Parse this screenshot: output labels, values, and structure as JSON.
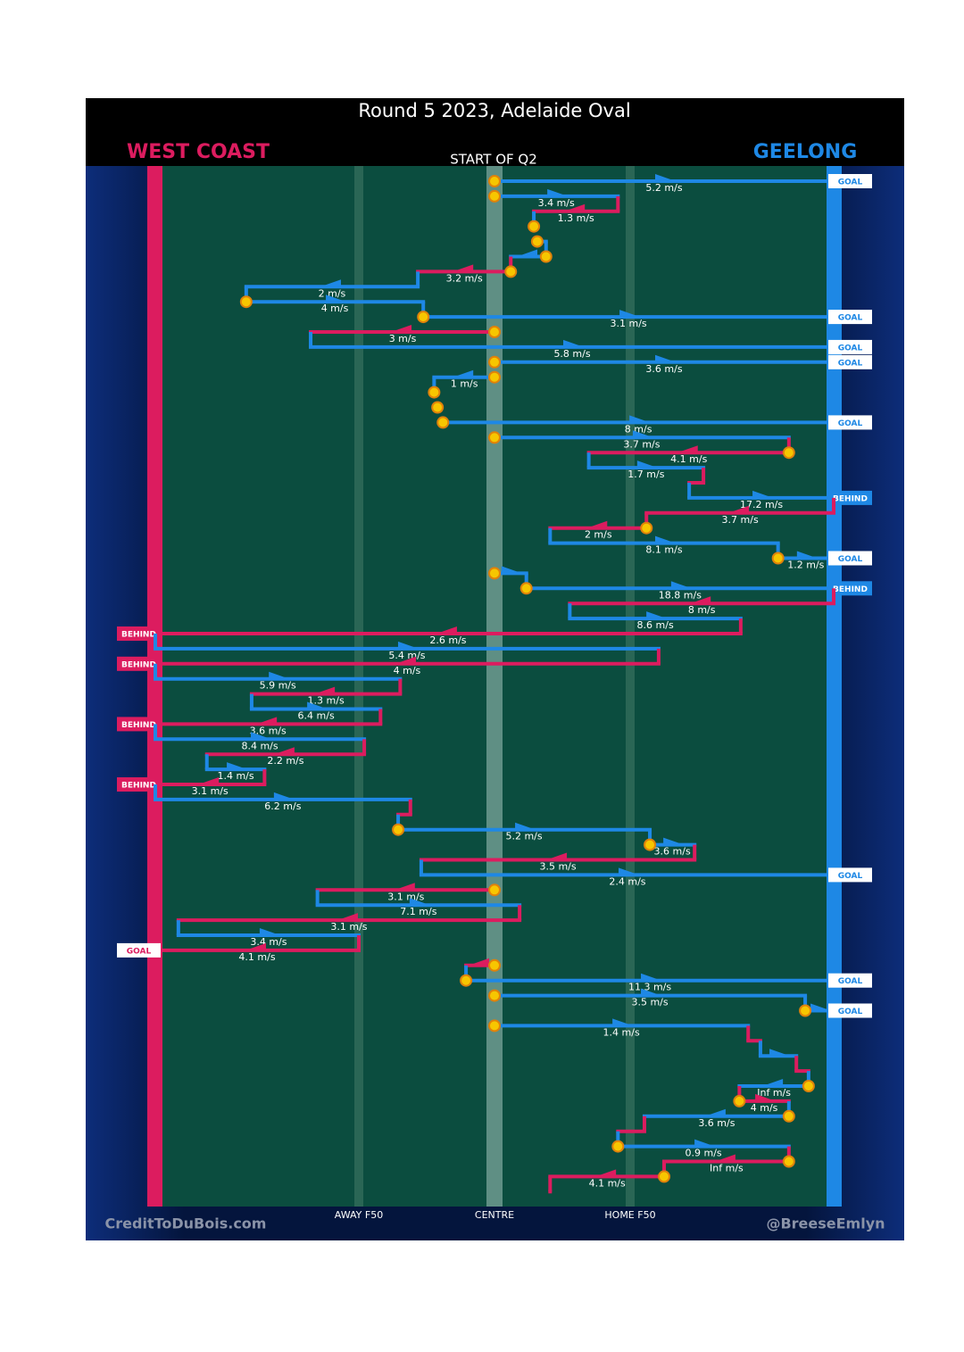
{
  "chart_data": {
    "type": "possession-chain",
    "title": "Round 5 2023, Adelaide Oval",
    "subtitle": "START OF Q2",
    "teams": [
      {
        "name": "WEST COAST",
        "color": "#dc1c5f"
      },
      {
        "name": "GEELONG",
        "color": "#1e88e5"
      }
    ],
    "credits": [
      "CreditToDuBois.com",
      "@BreeseEmlyn"
    ],
    "xlim": [
      0,
      100
    ],
    "xticks": [
      {
        "value": 30,
        "label": "AWAY F50"
      },
      {
        "value": 50,
        "label": "CENTRE"
      },
      {
        "value": 70,
        "label": "HOME F50"
      }
    ],
    "rows": [
      {
        "team": 1,
        "from": 50,
        "to": 100,
        "speed": "5.2 m/s",
        "result": "GOAL",
        "stoppage": true
      },
      {
        "team": 1,
        "from": 50,
        "to": 68.2,
        "speed": "3.4 m/s",
        "stoppage": true
      },
      {
        "team": 0,
        "from": 68.2,
        "to": 55.8,
        "speed": "1.3 m/s"
      },
      {
        "team": 1,
        "from": 55.8,
        "to": 55.8,
        "stoppage": true
      },
      {
        "team": 1,
        "from": 56.3,
        "to": 57.6,
        "stoppage": true
      },
      {
        "team": 1,
        "from": 57.6,
        "to": 52.4,
        "stoppage": true
      },
      {
        "team": 0,
        "from": 52.4,
        "to": 38.7,
        "speed": "3.2 m/s",
        "stoppage": true
      },
      {
        "team": 1,
        "from": 38.7,
        "to": 13.4,
        "speed": "2 m/s"
      },
      {
        "team": 1,
        "from": 13.4,
        "to": 39.5,
        "speed": "4 m/s",
        "stoppage": true
      },
      {
        "team": 1,
        "from": 39.5,
        "to": 100,
        "speed": "3.1 m/s",
        "result": "GOAL",
        "stoppage": true
      },
      {
        "team": 0,
        "from": 50,
        "to": 22.9,
        "speed": "3 m/s",
        "stoppage": true
      },
      {
        "team": 1,
        "from": 22.9,
        "to": 100,
        "speed": "5.8 m/s",
        "result": "GOAL"
      },
      {
        "team": 1,
        "from": 50,
        "to": 100,
        "speed": "3.6 m/s",
        "result": "GOAL",
        "stoppage": true
      },
      {
        "team": 1,
        "from": 50,
        "to": 41.1,
        "speed": "1 m/s",
        "stoppage": true
      },
      {
        "team": 1,
        "from": 41.1,
        "to": 41.1,
        "stoppage": true
      },
      {
        "team": 1,
        "from": 41.6,
        "to": 41.6,
        "stoppage": true
      },
      {
        "team": 1,
        "from": 42.4,
        "to": 100,
        "speed": "8 m/s",
        "result": "GOAL",
        "stoppage": true
      },
      {
        "team": 1,
        "from": 50,
        "to": 93.4,
        "speed": "3.7 m/s",
        "stoppage": true
      },
      {
        "team": 0,
        "from": 93.4,
        "to": 63.9,
        "speed": "4.1 m/s",
        "stoppage": true
      },
      {
        "team": 1,
        "from": 63.9,
        "to": 80.8,
        "speed": "1.7 m/s"
      },
      {
        "team": 0,
        "from": 80.8,
        "to": 78.7
      },
      {
        "team": 1,
        "from": 78.7,
        "to": 100,
        "speed": "17.2 m/s",
        "result": "BEHIND"
      },
      {
        "team": 0,
        "from": 100,
        "to": 72.4,
        "speed": "3.7 m/s"
      },
      {
        "team": 0,
        "from": 72.4,
        "to": 58.2,
        "speed": "2 m/s",
        "stoppage": true
      },
      {
        "team": 1,
        "from": 58.2,
        "to": 91.8,
        "speed": "8.1 m/s"
      },
      {
        "team": 1,
        "from": 91.8,
        "to": 100,
        "speed": "1.2 m/s",
        "result": "GOAL",
        "stoppage": true
      },
      {
        "team": 1,
        "from": 50,
        "to": 54.7,
        "stoppage": true
      },
      {
        "team": 1,
        "from": 54.7,
        "to": 100,
        "speed": "18.8 m/s",
        "result": "BEHIND",
        "stoppage": true
      },
      {
        "team": 0,
        "from": 100,
        "to": 61.1,
        "speed": "8 m/s"
      },
      {
        "team": 1,
        "from": 61.1,
        "to": 86.3,
        "speed": "8.6 m/s"
      },
      {
        "team": 0,
        "from": 86.3,
        "to": 0,
        "speed": "2.6 m/s",
        "result": "BEHIND"
      },
      {
        "team": 1,
        "from": 0,
        "to": 74.2,
        "speed": "5.4 m/s"
      },
      {
        "team": 0,
        "from": 74.2,
        "to": 0,
        "speed": "4 m/s",
        "result": "BEHIND"
      },
      {
        "team": 1,
        "from": 0,
        "to": 36.1,
        "speed": "5.9 m/s"
      },
      {
        "team": 0,
        "from": 36.1,
        "to": 14.2,
        "speed": "1.3 m/s"
      },
      {
        "team": 1,
        "from": 14.2,
        "to": 33.2,
        "speed": "6.4 m/s"
      },
      {
        "team": 0,
        "from": 33.2,
        "to": 0,
        "speed": "3.6 m/s",
        "result": "BEHIND"
      },
      {
        "team": 1,
        "from": 0,
        "to": 30.8,
        "speed": "8.4 m/s"
      },
      {
        "team": 0,
        "from": 30.8,
        "to": 7.6,
        "speed": "2.2 m/s"
      },
      {
        "team": 1,
        "from": 7.6,
        "to": 16.1,
        "speed": "1.4 m/s"
      },
      {
        "team": 0,
        "from": 16.1,
        "to": 0,
        "speed": "3.1 m/s",
        "result": "BEHIND"
      },
      {
        "team": 1,
        "from": 0,
        "to": 37.6,
        "speed": "6.2 m/s"
      },
      {
        "team": 0,
        "from": 37.6,
        "to": 35.8
      },
      {
        "team": 1,
        "from": 35.8,
        "to": 72.9,
        "speed": "5.2 m/s",
        "stoppage": true
      },
      {
        "team": 1,
        "from": 72.9,
        "to": 79.5,
        "speed": "3.6 m/s",
        "stoppage": true
      },
      {
        "team": 0,
        "from": 79.5,
        "to": 39.2,
        "speed": "3.5 m/s"
      },
      {
        "team": 1,
        "from": 39.2,
        "to": 100,
        "speed": "2.4 m/s",
        "result": "GOAL"
      },
      {
        "team": 0,
        "from": 50,
        "to": 23.9,
        "speed": "3.1 m/s",
        "stoppage": true
      },
      {
        "team": 1,
        "from": 23.9,
        "to": 53.7,
        "speed": "7.1 m/s"
      },
      {
        "team": 0,
        "from": 53.7,
        "to": 3.4,
        "speed": "3.1 m/s"
      },
      {
        "team": 1,
        "from": 3.4,
        "to": 30,
        "speed": "3.4 m/s"
      },
      {
        "team": 0,
        "from": 30,
        "to": 0,
        "speed": "4.1 m/s",
        "result": "GOAL"
      },
      {
        "team": 0,
        "from": 50,
        "to": 45.8,
        "stoppage": true
      },
      {
        "team": 1,
        "from": 45.8,
        "to": 100,
        "speed": "11.3 m/s",
        "result": "GOAL",
        "stoppage": true
      },
      {
        "team": 1,
        "from": 50,
        "to": 95.8,
        "speed": "3.5 m/s",
        "stoppage": true
      },
      {
        "team": 1,
        "from": 95.8,
        "to": 100,
        "result": "GOAL",
        "stoppage": true
      },
      {
        "team": 1,
        "from": 50,
        "to": 87.4,
        "speed": "1.4 m/s",
        "stoppage": true
      },
      {
        "team": 0,
        "from": 87.4,
        "to": 89.2
      },
      {
        "team": 1,
        "from": 89.2,
        "to": 94.5
      },
      {
        "team": 0,
        "from": 94.5,
        "to": 96.3
      },
      {
        "team": 1,
        "from": 96.3,
        "to": 86.1,
        "speed": "Inf m/s",
        "stoppage": true
      },
      {
        "team": 0,
        "from": 86.1,
        "to": 93.4,
        "speed": "4 m/s",
        "stoppage": true
      },
      {
        "team": 1,
        "from": 93.4,
        "to": 72.1,
        "speed": "3.6 m/s",
        "stoppage": true
      },
      {
        "team": 0,
        "from": 72.1,
        "to": 68.2
      },
      {
        "team": 1,
        "from": 68.2,
        "to": 93.4,
        "speed": "0.9 m/s",
        "stoppage": true
      },
      {
        "team": 0,
        "from": 93.4,
        "to": 75,
        "speed": "Inf m/s",
        "stoppage": true
      },
      {
        "team": 0,
        "from": 75,
        "to": 58.2,
        "speed": "4.1 m/s",
        "stoppage": true
      },
      {
        "team": 0,
        "from": 58.2,
        "to": 58.2
      }
    ]
  }
}
